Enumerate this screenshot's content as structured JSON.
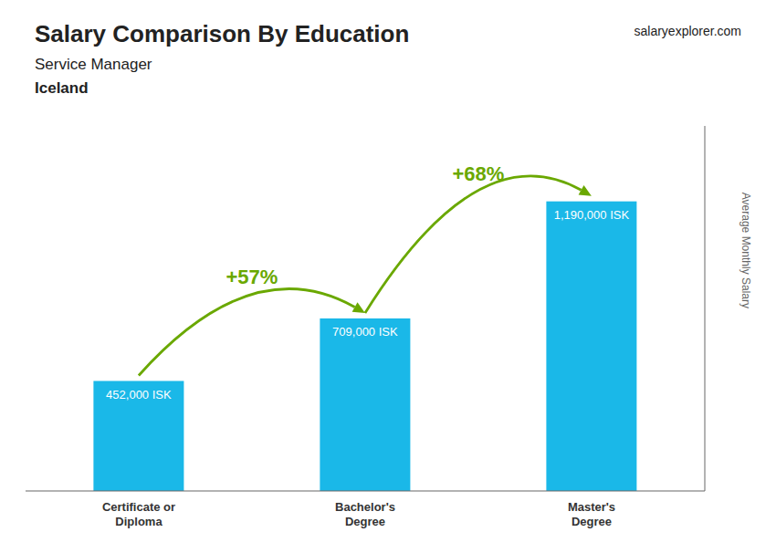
{
  "chart_data": {
    "type": "bar",
    "title": "Salary Comparison By Education",
    "subtitle": "Service Manager",
    "y_label": "Average Monthly Salary",
    "categories": [
      "Certificate or\nDiploma",
      "Bachelor's\nDegree",
      "Master's\nDegree"
    ],
    "values": [
      452000,
      709000,
      1190000
    ],
    "value_labels": [
      "452,000 ISK",
      "709,000 ISK",
      "1,190,000 ISK"
    ],
    "data_labels": true,
    "color": "#1ab8e8",
    "ylim": [
      0,
      1500000
    ],
    "grid": false,
    "tick_labels": "x",
    "annotations": [
      {
        "text": "Iceland"
      },
      {
        "text": "salaryexplorer.com"
      },
      {
        "text": "+57%",
        "from": "Certificate or\nDiploma",
        "to": "Bachelor's\nDegree",
        "color": "#6aa800"
      },
      {
        "text": "+68%",
        "from": "Bachelor's\nDegree",
        "to": "Master's\nDegree",
        "color": "#6aa800"
      }
    ]
  }
}
